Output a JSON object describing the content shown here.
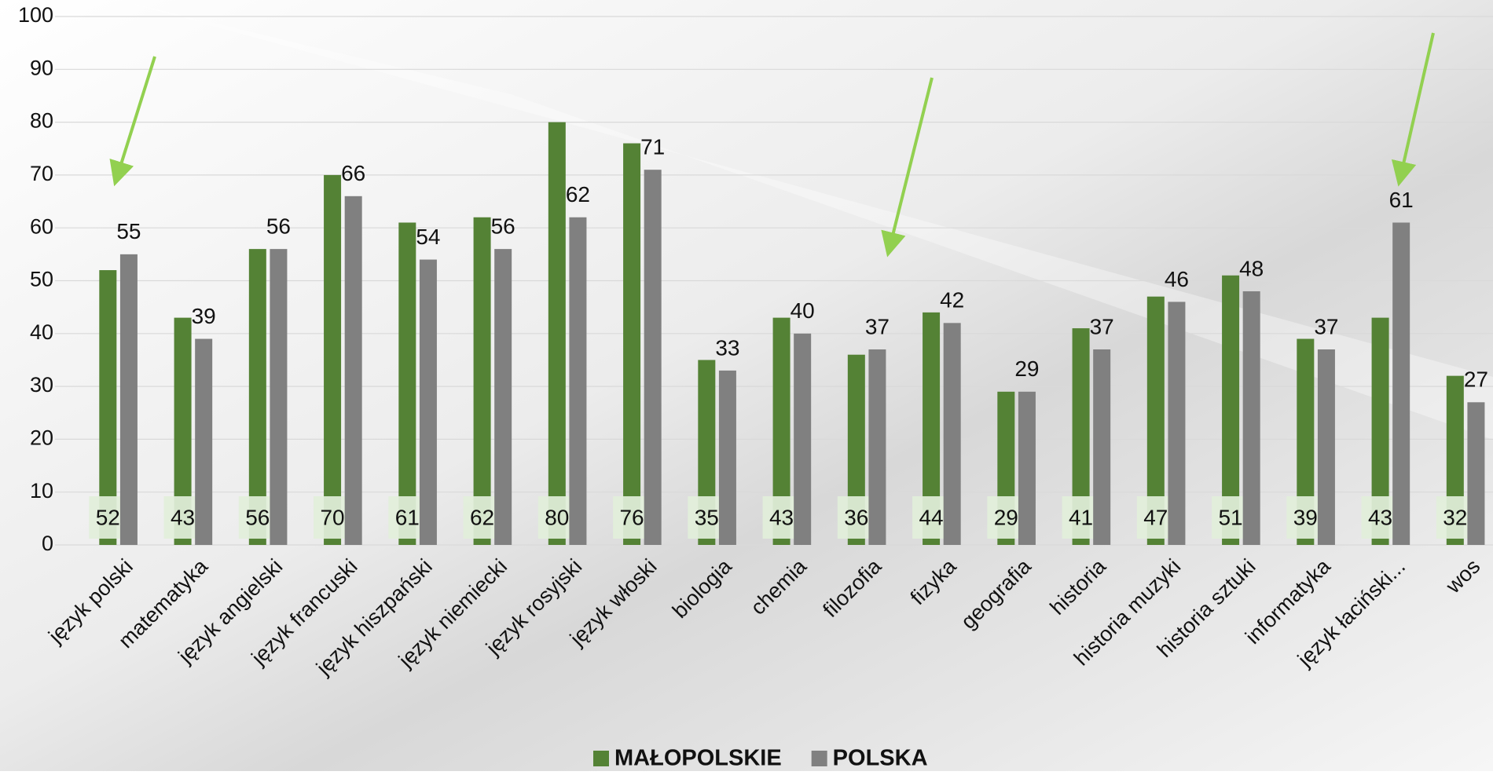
{
  "chart_data": {
    "type": "bar",
    "categories": [
      "język polski",
      "matematyka",
      "język angielski",
      "język francuski",
      "język hiszpański",
      "język niemiecki",
      "język rosyjski",
      "język włoski",
      "biologia",
      "chemia",
      "filozofia",
      "fizyka",
      "geografia",
      "historia",
      "historia muzyki",
      "historia sztuki",
      "informatyka",
      "język łaciński...",
      "wos"
    ],
    "series": [
      {
        "name": "MAŁOPOLSKIE",
        "color": "#548235",
        "values": [
          52,
          43,
          56,
          70,
          61,
          62,
          80,
          76,
          35,
          43,
          36,
          44,
          29,
          41,
          47,
          51,
          39,
          43,
          32
        ]
      },
      {
        "name": "POLSKA",
        "color": "#808080",
        "values": [
          55,
          39,
          56,
          66,
          54,
          56,
          62,
          71,
          33,
          40,
          37,
          42,
          29,
          37,
          46,
          48,
          37,
          61,
          27
        ]
      }
    ],
    "ylim": [
      0,
      100
    ],
    "yticks": [
      0,
      10,
      20,
      30,
      40,
      50,
      60,
      70,
      80,
      90,
      100
    ],
    "grid": true,
    "legend": "bottom"
  }
}
